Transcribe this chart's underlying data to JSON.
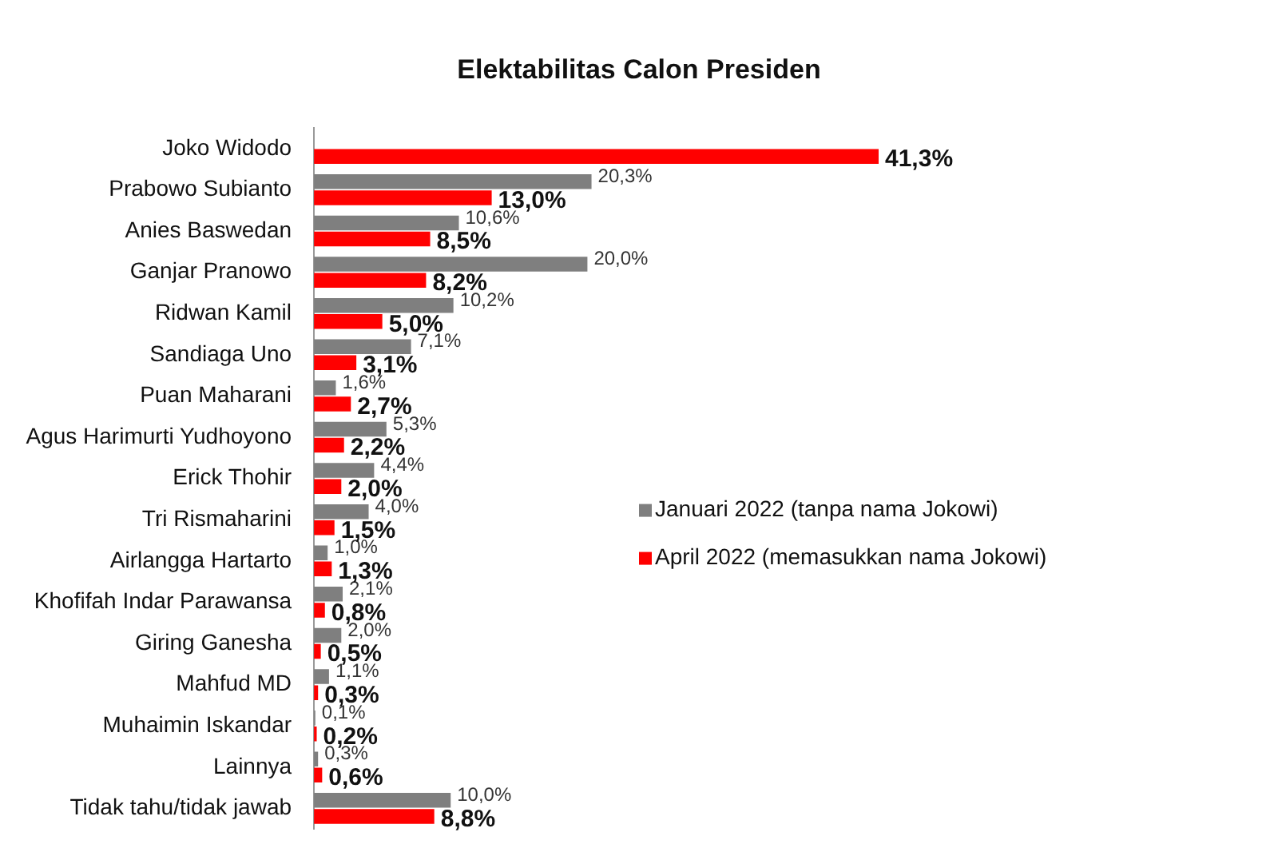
{
  "chart_data": {
    "type": "bar",
    "orientation": "horizontal",
    "title": "Elektabilitas Calon Presiden",
    "categories": [
      "Joko Widodo",
      "Prabowo Subianto",
      "Anies Baswedan",
      "Ganjar Pranowo",
      "Ridwan Kamil",
      "Sandiaga Uno",
      "Puan Maharani",
      "Agus Harimurti Yudhoyono",
      "Erick Thohir",
      "Tri Rismaharini",
      "Airlangga Hartarto",
      "Khofifah Indar Parawansa",
      "Giring Ganesha",
      "Mahfud MD",
      "Muhaimin Iskandar",
      "Lainnya",
      "Tidak tahu/tidak jawab"
    ],
    "series": [
      {
        "name": "Januari 2022 (tanpa nama Jokowi)",
        "color": "#7f7f7f",
        "values": [
          null,
          20.3,
          10.6,
          20.0,
          10.2,
          7.1,
          1.6,
          5.3,
          4.4,
          4.0,
          1.0,
          2.1,
          2.0,
          1.1,
          0.1,
          0.3,
          10.0
        ],
        "value_labels": [
          null,
          "20,3%",
          "10,6%",
          "20,0%",
          "10,2%",
          "7,1%",
          "1,6%",
          "5,3%",
          "4,4%",
          "4,0%",
          "1,0%",
          "2,1%",
          "2,0%",
          "1,1%",
          "0,1%",
          "0,3%",
          "10,0%"
        ]
      },
      {
        "name": "April 2022 (memasukkan nama Jokowi)",
        "color": "#ff0000",
        "values": [
          41.3,
          13.0,
          8.5,
          8.2,
          5.0,
          3.1,
          2.7,
          2.2,
          2.0,
          1.5,
          1.3,
          0.8,
          0.5,
          0.3,
          0.2,
          0.6,
          8.8
        ],
        "value_labels": [
          "41,3%",
          "13,0%",
          "8,5%",
          "8,2%",
          "5,0%",
          "3,1%",
          "2,7%",
          "2,2%",
          "2,0%",
          "1,5%",
          "1,3%",
          "0,8%",
          "0,5%",
          "0,3%",
          "0,2%",
          "0,6%",
          "8,8%"
        ]
      }
    ],
    "xlim": [
      0,
      41.3
    ],
    "tick_labels": "y",
    "legend": "right"
  }
}
